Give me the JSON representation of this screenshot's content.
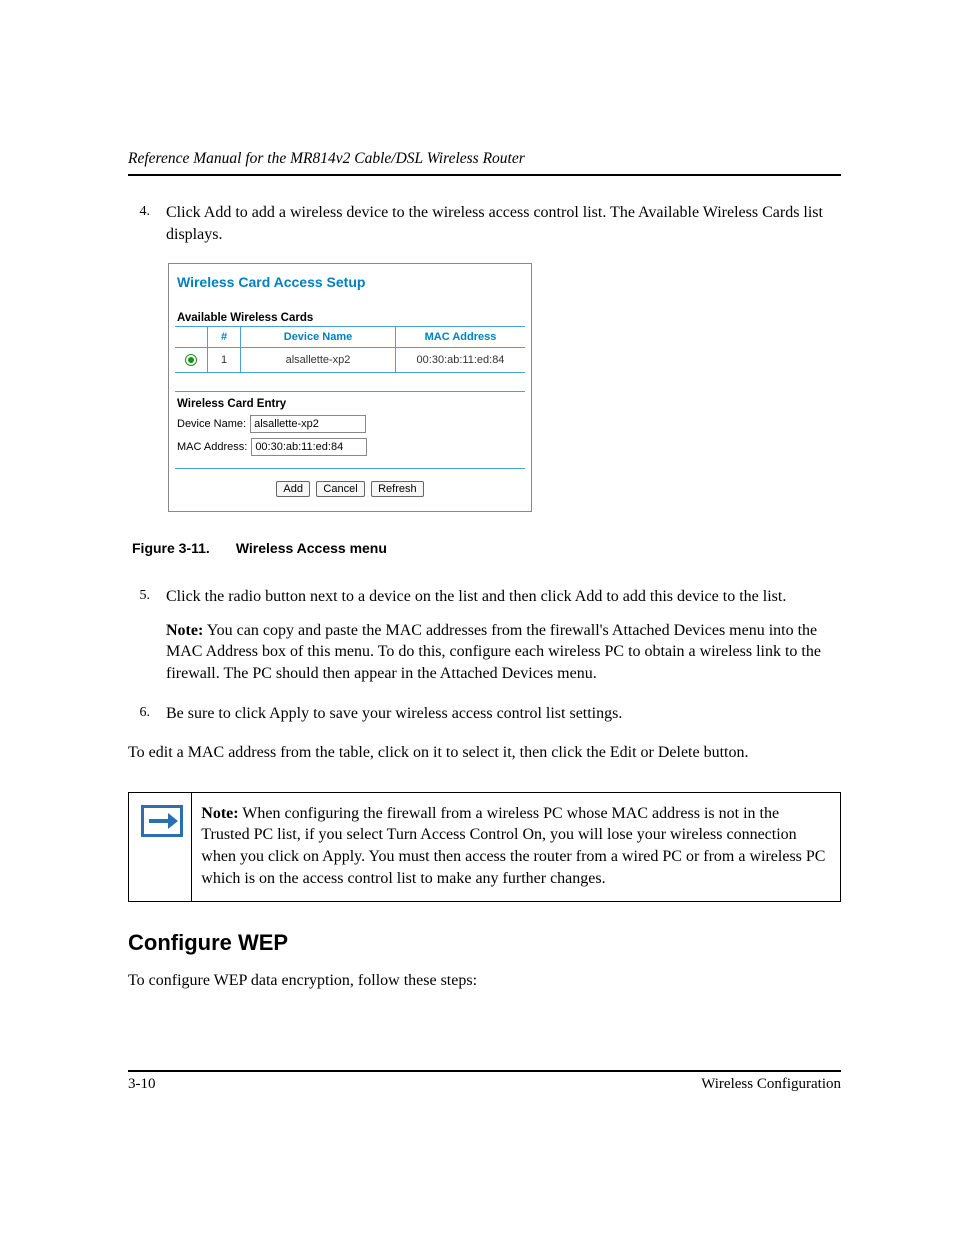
{
  "header": {
    "title": "Reference Manual for the MR814v2 Cable/DSL Wireless Router"
  },
  "steps": {
    "s4": {
      "num": "4.",
      "text": "Click Add to add a wireless device to the wireless access control list. The Available Wireless Cards list displays."
    },
    "s5": {
      "num": "5.",
      "p1": "Click the radio button next to a device on the list and then click Add to add this device to the list.",
      "note_label": "Note:",
      "note": " You can copy and paste the MAC addresses from the firewall's Attached Devices menu into the MAC Address box of this menu. To do this, configure each wireless PC to obtain a wireless link to the firewall. The PC should then appear in the Attached Devices menu."
    },
    "s6": {
      "num": "6.",
      "text": "Be sure to click Apply to save your wireless access control list settings."
    }
  },
  "figure": {
    "title": "Wireless Card Access Setup",
    "available_heading": "Available Wireless Cards",
    "cols": {
      "radio": "",
      "num": "#",
      "name": "Device Name",
      "mac": "MAC Address"
    },
    "row": {
      "num": "1",
      "name": "alsallette-xp2",
      "mac": "00:30:ab:11:ed:84"
    },
    "entry_heading": "Wireless Card Entry",
    "device_label": "Device Name:",
    "device_value": "alsallette-xp2",
    "mac_label": "MAC Address:",
    "mac_value": "00:30:ab:11:ed:84",
    "buttons": {
      "add": "Add",
      "cancel": "Cancel",
      "refresh": "Refresh"
    },
    "caption_a": "Figure 3-11.",
    "caption_b": "Wireless Access menu"
  },
  "edit_para": "To edit a MAC address from the table, click on it to select it, then click the Edit or Delete button.",
  "notebox": {
    "label": "Note:",
    "text": " When configuring the firewall from a wireless PC whose MAC address is not in the Trusted PC list, if you select Turn Access Control On, you will lose your wireless connection when you click on Apply. You must then access the router from a wired PC or from a wireless PC which is on the access control list to make any further changes."
  },
  "h2": "Configure WEP",
  "after_h2": "To configure WEP data encryption, follow these steps:",
  "footer": {
    "page": "3-10",
    "section": "Wireless Configuration"
  }
}
